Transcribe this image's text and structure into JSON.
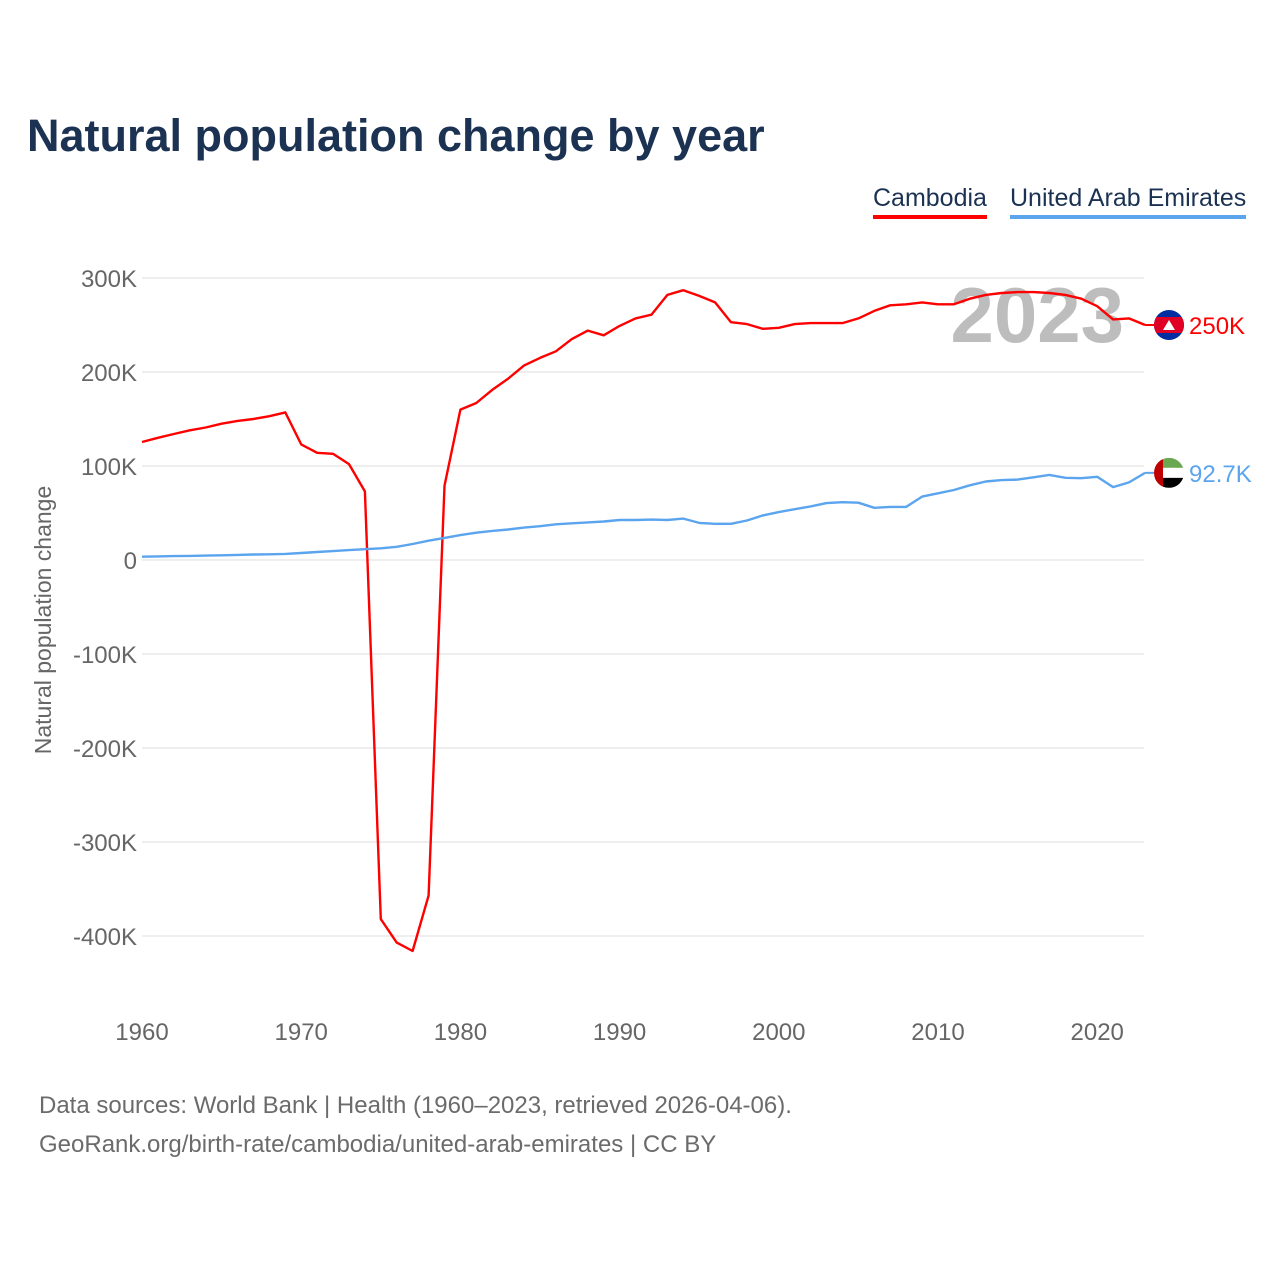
{
  "chart_data": {
    "type": "line",
    "title": "Natural population change by year",
    "ylabel": "Natural population change",
    "xlabel": "",
    "xlim": [
      1960,
      2023
    ],
    "ylim": [
      -450000,
      330000
    ],
    "x_ticks": [
      1960,
      1970,
      1980,
      1990,
      2000,
      2010,
      2020
    ],
    "x_tick_labels": [
      "1960",
      "1970",
      "1980",
      "1990",
      "2000",
      "2010",
      "2020"
    ],
    "y_ticks": [
      300000,
      200000,
      100000,
      0,
      -100000,
      -200000,
      -300000,
      -400000
    ],
    "y_tick_labels": [
      "300K",
      "200K",
      "100K",
      "0",
      "-100K",
      "-200K",
      "-300K",
      "-400K"
    ],
    "grid": true,
    "legend_placement": "top-right",
    "year_watermark": "2023",
    "x_start": 1960,
    "series": [
      {
        "name": "Cambodia",
        "color": "#ff0000",
        "end_label": "250K",
        "flag": "cambodia-flag",
        "values": [
          125500,
          130000,
          134000,
          138000,
          141000,
          145000,
          148000,
          150000,
          153000,
          157000,
          123000,
          114000,
          113000,
          102000,
          73000,
          -382000,
          -407000,
          -416000,
          -357000,
          79000,
          160000,
          167000,
          181000,
          193000,
          207000,
          215000,
          222000,
          235000,
          244000,
          239000,
          249000,
          257000,
          261000,
          282000,
          287000,
          281000,
          274000,
          253000,
          251000,
          246000,
          247000,
          251000,
          252000,
          252000,
          252000,
          257000,
          265000,
          271000,
          272000,
          274000,
          272000,
          272000,
          278000,
          282000,
          284000,
          285000,
          285000,
          284000,
          282000,
          278000,
          270000,
          256000,
          257000,
          250000
        ]
      },
      {
        "name": "United Arab Emirates",
        "color": "#5ba4ee",
        "end_label": "92.7K",
        "flag": "uae-flag",
        "values": [
          3500,
          3800,
          4100,
          4400,
          4700,
          5000,
          5400,
          5800,
          6100,
          6500,
          7500,
          8500,
          9500,
          10500,
          11500,
          12500,
          14000,
          17000,
          20500,
          23500,
          26500,
          29000,
          31000,
          32500,
          34500,
          36000,
          38000,
          39000,
          40000,
          41000,
          42500,
          42500,
          43000,
          42500,
          44000,
          39500,
          38500,
          38500,
          42000,
          47500,
          51000,
          54000,
          57000,
          60500,
          61500,
          61000,
          55500,
          56500,
          56500,
          67500,
          71000,
          74500,
          79500,
          83500,
          85000,
          85500,
          88000,
          90500,
          87500,
          87000,
          88500,
          77500,
          82500,
          92700
        ]
      }
    ]
  },
  "footer": {
    "line1": "Data sources: World Bank | Health (1960–2023, retrieved 2026-04-06).",
    "line2": "GeoRank.org/birth-rate/cambodia/united-arab-emirates | CC BY"
  }
}
